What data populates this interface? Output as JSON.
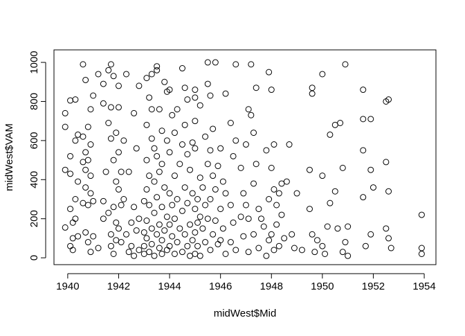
{
  "chart_data": {
    "type": "scatter",
    "x_label": "midWest$Mid",
    "y_label": "midWest$VAM",
    "xlim": [
      1939.46,
      1954.46
    ],
    "ylim": [
      -35,
      1064
    ],
    "xticks": [
      1940,
      1942,
      1944,
      1946,
      1948,
      1950,
      1952,
      1954
    ],
    "yticks": [
      0,
      200,
      400,
      600,
      800,
      1000
    ],
    "color": "#000000",
    "x": [
      1939.9,
      1939.9,
      1939.9,
      1939.9,
      1940.1,
      1940.1,
      1940.1,
      1940.1,
      1940.1,
      1940.2,
      1940.2,
      1940.2,
      1940.3,
      1940.3,
      1940.3,
      1940.3,
      1940.4,
      1940.4,
      1940.4,
      1940.6,
      1940.6,
      1940.6,
      1940.6,
      1940.7,
      1940.7,
      1940.7,
      1940.7,
      1940.7,
      1940.8,
      1940.8,
      1940.8,
      1940.8,
      1940.9,
      1940.9,
      1940.9,
      1940.9,
      1940.9,
      1941.0,
      1941.0,
      1941.0,
      1941.2,
      1941.2,
      1941.4,
      1941.4,
      1941.4,
      1941.4,
      1941.5,
      1941.6,
      1941.6,
      1941.6,
      1941.7,
      1941.7,
      1941.7,
      1941.7,
      1941.7,
      1941.8,
      1941.8,
      1941.8,
      1941.8,
      1941.9,
      1941.9,
      1941.9,
      1941.9,
      1942.0,
      1942.0,
      1942.0,
      1942.0,
      1942.0,
      1942.1,
      1942.1,
      1942.1,
      1942.2,
      1942.2,
      1942.3,
      1942.3,
      1942.4,
      1942.4,
      1942.5,
      1942.5,
      1942.6,
      1942.6,
      1942.6,
      1942.7,
      1942.7,
      1942.8,
      1942.8,
      1942.8,
      1943.0,
      1943.0,
      1943.0,
      1943.0,
      1943.1,
      1943.1,
      1943.1,
      1943.1,
      1943.1,
      1943.1,
      1943.2,
      1943.2,
      1943.2,
      1943.2,
      1943.3,
      1943.3,
      1943.3,
      1943.3,
      1943.3,
      1943.4,
      1943.4,
      1943.4,
      1943.4,
      1943.5,
      1943.5,
      1943.5,
      1943.5,
      1943.5,
      1943.6,
      1943.6,
      1943.6,
      1943.6,
      1943.7,
      1943.7,
      1943.7,
      1943.7,
      1943.7,
      1943.8,
      1943.8,
      1943.8,
      1943.9,
      1943.9,
      1943.9,
      1943.9,
      1944.0,
      1944.0,
      1944.0,
      1944.0,
      1944.0,
      1944.1,
      1944.1,
      1944.1,
      1944.2,
      1944.2,
      1944.2,
      1944.2,
      1944.3,
      1944.3,
      1944.3,
      1944.4,
      1944.4,
      1944.5,
      1944.5,
      1944.5,
      1944.5,
      1944.6,
      1944.6,
      1944.6,
      1944.6,
      1944.7,
      1944.7,
      1944.7,
      1944.7,
      1944.8,
      1944.8,
      1944.8,
      1944.9,
      1944.9,
      1944.9,
      1945.0,
      1945.0,
      1945.0,
      1945.0,
      1945.0,
      1945.0,
      1945.0,
      1945.1,
      1945.1,
      1945.1,
      1945.2,
      1945.2,
      1945.2,
      1945.2,
      1945.3,
      1945.3,
      1945.4,
      1945.4,
      1945.4,
      1945.5,
      1945.5,
      1945.5,
      1945.5,
      1945.6,
      1945.6,
      1945.6,
      1945.6,
      1945.7,
      1945.7,
      1945.7,
      1945.8,
      1945.8,
      1945.8,
      1945.9,
      1945.9,
      1946.0,
      1946.0,
      1946.0,
      1946.1,
      1946.1,
      1946.2,
      1946.2,
      1946.2,
      1946.4,
      1946.4,
      1946.4,
      1946.5,
      1946.5,
      1946.6,
      1946.6,
      1946.6,
      1946.8,
      1946.8,
      1946.9,
      1946.9,
      1947.0,
      1947.0,
      1947.1,
      1947.1,
      1947.1,
      1947.2,
      1947.2,
      1947.3,
      1947.3,
      1947.3,
      1947.4,
      1947.4,
      1947.5,
      1947.5,
      1947.6,
      1947.7,
      1947.8,
      1947.8,
      1947.9,
      1947.9,
      1947.9,
      1948.0,
      1948.0,
      1948.0,
      1948.1,
      1948.1,
      1948.1,
      1948.2,
      1948.2,
      1948.3,
      1948.3,
      1948.4,
      1948.4,
      1948.5,
      1948.6,
      1948.7,
      1948.8,
      1948.9,
      1949.0,
      1949.2,
      1949.5,
      1949.5,
      1949.6,
      1949.6,
      1949.6,
      1949.7,
      1949.8,
      1950.0,
      1950.0,
      1950.0,
      1950.1,
      1950.2,
      1950.3,
      1950.3,
      1950.5,
      1950.5,
      1950.6,
      1950.7,
      1950.8,
      1950.8,
      1950.9,
      1950.9,
      1951.0,
      1951.0,
      1951.6,
      1951.6,
      1951.6,
      1951.6,
      1951.7,
      1951.9,
      1951.9,
      1951.9,
      1952.0,
      1952.5,
      1952.5,
      1952.5,
      1952.6,
      1952.6,
      1952.6,
      1952.7,
      1953.9,
      1953.9,
      1953.9
    ],
    "values": [
      740,
      670,
      450,
      155,
      805,
      520,
      430,
      250,
      60,
      180,
      100,
      40,
      810,
      600,
      300,
      200,
      630,
      390,
      110,
      990,
      620,
      490,
      280,
      910,
      540,
      450,
      360,
      130,
      670,
      500,
      270,
      80,
      760,
      580,
      420,
      330,
      30,
      830,
      290,
      110,
      940,
      50,
      890,
      790,
      290,
      200,
      440,
      960,
      690,
      230,
      990,
      770,
      610,
      120,
      60,
      930,
      500,
      260,
      20,
      640,
      390,
      180,
      90,
      880,
      770,
      540,
      350,
      150,
      440,
      270,
      80,
      600,
      300,
      940,
      120,
      440,
      30,
      180,
      60,
      740,
      260,
      10,
      560,
      140,
      880,
      200,
      40,
      290,
      130,
      60,
      20,
      920,
      680,
      500,
      350,
      190,
      100,
      820,
      420,
      270,
      30,
      940,
      760,
      610,
      150,
      70,
      560,
      390,
      230,
      10,
      960,
      980,
      520,
      310,
      120,
      760,
      440,
      170,
      50,
      650,
      480,
      260,
      90,
      20,
      900,
      360,
      140,
      850,
      600,
      210,
      40,
      860,
      540,
      330,
      170,
      60,
      730,
      270,
      110,
      640,
      420,
      200,
      20,
      760,
      300,
      80,
      480,
      150,
      970,
      580,
      240,
      30,
      870,
      680,
      360,
      120,
      810,
      530,
      280,
      60,
      450,
      170,
      10,
      590,
      330,
      90,
      860,
      820,
      700,
      560,
      250,
      130,
      20,
      300,
      180,
      60,
      780,
      410,
      210,
      10,
      360,
      150,
      620,
      270,
      80,
      1000,
      890,
      480,
      200,
      830,
      550,
      300,
      40,
      660,
      420,
      120,
      1000,
      350,
      190,
      470,
      70,
      560,
      250,
      90,
      390,
      150,
      840,
      330,
      20,
      690,
      270,
      80,
      520,
      180,
      990,
      600,
      40,
      460,
      210,
      330,
      110,
      580,
      270,
      760,
      200,
      30,
      990,
      730,
      640,
      380,
      120,
      870,
      480,
      250,
      50,
      200,
      160,
      550,
      10,
      950,
      300,
      90,
      860,
      460,
      120,
      580,
      350,
      40,
      270,
      170,
      330,
      60,
      380,
      220,
      100,
      390,
      580,
      120,
      50,
      330,
      40,
      450,
      250,
      870,
      840,
      120,
      30,
      90,
      940,
      420,
      60,
      20,
      160,
      630,
      280,
      680,
      340,
      150,
      690,
      460,
      30,
      990,
      80,
      160,
      10,
      860,
      710,
      550,
      310,
      60,
      710,
      450,
      120,
      360,
      800,
      490,
      150,
      810,
      340,
      100,
      50,
      220,
      50,
      20
    ]
  }
}
